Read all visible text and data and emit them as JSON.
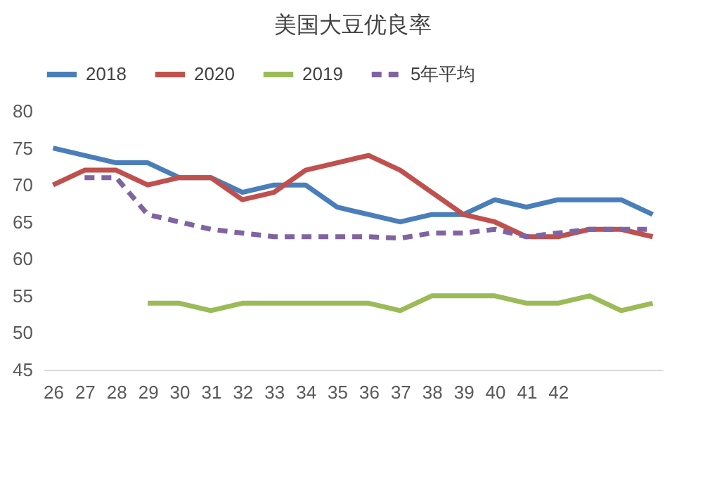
{
  "chart_data": {
    "type": "line",
    "title": "美国大豆优良率",
    "categories": [
      "26",
      "27",
      "28",
      "29",
      "30",
      "31",
      "32",
      "33",
      "34",
      "35",
      "36",
      "37",
      "38",
      "39",
      "40",
      "41",
      "42",
      null,
      null,
      null
    ],
    "ylim": [
      45,
      80
    ],
    "yticks": [
      45,
      50,
      55,
      60,
      65,
      70,
      75,
      80
    ],
    "grid": false,
    "legend": "top",
    "series": [
      {
        "name": "2018",
        "color": "#4a7ebb",
        "values": [
          75,
          74,
          73,
          73,
          71,
          71,
          69,
          70,
          70,
          67,
          66,
          65,
          66,
          66,
          68,
          67,
          68,
          68,
          68,
          66
        ]
      },
      {
        "name": "2020",
        "color": "#c0504d",
        "values": [
          70,
          72,
          72,
          70,
          71,
          71,
          68,
          69,
          72,
          73,
          74,
          72,
          69,
          66,
          65,
          63,
          63,
          64,
          64,
          63
        ]
      },
      {
        "name": "2019",
        "color": "#9bbb59",
        "values": [
          null,
          null,
          null,
          54,
          54,
          53,
          54,
          54,
          54,
          54,
          54,
          53,
          55,
          55,
          55,
          54,
          54,
          55,
          53,
          54
        ]
      },
      {
        "name": "5年平均",
        "color": "#8064a2",
        "line_style": "dashed",
        "values": [
          null,
          71,
          71,
          66,
          65,
          64,
          63.5,
          63,
          63,
          63,
          63,
          62.8,
          63.5,
          63.5,
          64,
          63,
          63.5,
          64,
          64,
          64
        ]
      }
    ]
  }
}
